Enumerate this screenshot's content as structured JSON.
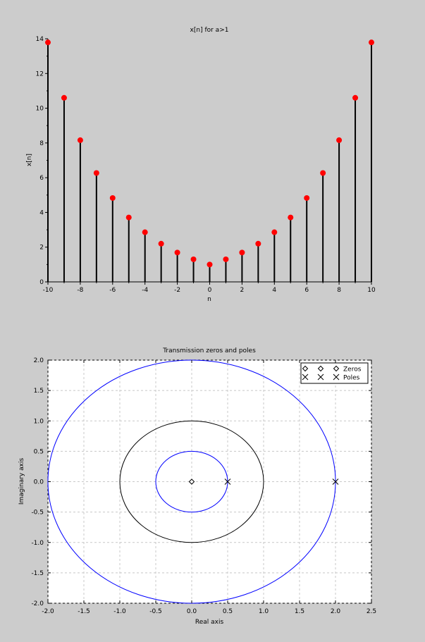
{
  "chart_data": [
    {
      "type": "stem",
      "title": "x[n] for a>1",
      "xlabel": "n",
      "ylabel": "x[n]",
      "xlim": [
        -10,
        10
      ],
      "ylim": [
        0,
        14
      ],
      "xticks": [
        -10,
        -8,
        -6,
        -4,
        -2,
        0,
        2,
        4,
        6,
        8,
        10
      ],
      "yticks": [
        0,
        2,
        4,
        6,
        8,
        10,
        12,
        14
      ],
      "x": [
        -10,
        -9,
        -8,
        -7,
        -6,
        -5,
        -4,
        -3,
        -2,
        -1,
        0,
        1,
        2,
        3,
        4,
        5,
        6,
        7,
        8,
        9,
        10
      ],
      "values": [
        13.79,
        10.6,
        8.16,
        6.27,
        4.83,
        3.71,
        2.86,
        2.2,
        1.69,
        1.3,
        1.0,
        1.3,
        1.69,
        2.2,
        2.86,
        3.71,
        4.83,
        6.27,
        8.16,
        10.6,
        13.79
      ],
      "stem_color": "#000000",
      "marker_color": "#ff0000"
    },
    {
      "type": "scatter",
      "title": "Transmission zeros and poles",
      "xlabel": "Real axis",
      "ylabel": "Imaginary axis",
      "xlim": [
        -2.0,
        2.5
      ],
      "ylim": [
        -2.0,
        2.0
      ],
      "xticks": [
        "-2.0",
        "-1.5",
        "-1.0",
        "-0.5",
        "0.0",
        "0.5",
        "1.0",
        "1.5",
        "2.0",
        "2.5"
      ],
      "yticks": [
        "-2.0",
        "-1.5",
        "-1.0",
        "-0.5",
        "0.0",
        "0.5",
        "1.0",
        "1.5",
        "2.0"
      ],
      "grid": true,
      "legend": "top-right",
      "circles": [
        {
          "radius": 0.5,
          "color": "#0000ff"
        },
        {
          "radius": 1.0,
          "color": "#000000"
        },
        {
          "radius": 2.0,
          "color": "#0000ff"
        }
      ],
      "series": [
        {
          "name": "Zeros",
          "marker": "diamond",
          "points": [
            [
              0,
              0
            ]
          ]
        },
        {
          "name": "Poles",
          "marker": "x",
          "points": [
            [
              0.5,
              0
            ],
            [
              2.0,
              0
            ]
          ]
        }
      ]
    }
  ]
}
